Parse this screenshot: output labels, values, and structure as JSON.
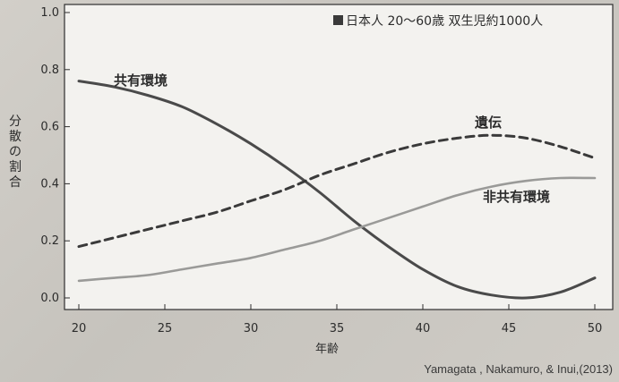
{
  "chart_data": {
    "type": "line",
    "title": "日本人 20〜60歳 双生児約1000人",
    "xlabel": "年齢",
    "ylabel": "分散の割合",
    "xlim": [
      20,
      50
    ],
    "ylim": [
      0.0,
      1.0
    ],
    "x_ticks": [
      "20",
      "25",
      "30",
      "35",
      "40",
      "45",
      "50"
    ],
    "y_ticks": [
      "0.0",
      "0.2",
      "0.4",
      "0.6",
      "0.8",
      "1.0"
    ],
    "series": [
      {
        "name": "共有環境",
        "style": "solid-dark",
        "color": "#4a4a4a",
        "x": [
          20,
          22,
          24,
          26,
          28,
          30,
          32,
          34,
          36,
          38,
          40,
          42,
          44,
          46,
          48,
          50
        ],
        "y": [
          0.76,
          0.74,
          0.71,
          0.67,
          0.61,
          0.54,
          0.46,
          0.37,
          0.27,
          0.18,
          0.1,
          0.04,
          0.01,
          0.0,
          0.02,
          0.07
        ]
      },
      {
        "name": "遺伝",
        "style": "dashed",
        "color": "#3a3a3a",
        "x": [
          20,
          22,
          24,
          26,
          28,
          30,
          32,
          34,
          36,
          38,
          40,
          42,
          44,
          46,
          48,
          50
        ],
        "y": [
          0.18,
          0.21,
          0.24,
          0.27,
          0.3,
          0.34,
          0.38,
          0.43,
          0.47,
          0.51,
          0.54,
          0.56,
          0.57,
          0.56,
          0.53,
          0.49
        ]
      },
      {
        "name": "非共有環境",
        "style": "solid-light",
        "color": "#9a9a98",
        "x": [
          20,
          22,
          24,
          26,
          28,
          30,
          32,
          34,
          36,
          38,
          40,
          42,
          44,
          46,
          48,
          50
        ],
        "y": [
          0.06,
          0.07,
          0.08,
          0.1,
          0.12,
          0.14,
          0.17,
          0.2,
          0.24,
          0.28,
          0.32,
          0.36,
          0.39,
          0.41,
          0.42,
          0.42
        ]
      }
    ],
    "citation": "Yamagata , Nakamuro, & Inui,(2013)"
  },
  "legend_square_color": "#3a3a3a"
}
